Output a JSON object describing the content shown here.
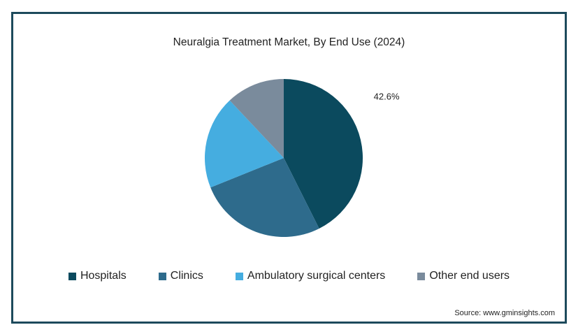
{
  "chart_data": {
    "type": "pie",
    "title": "Neuralgia Treatment Market, By End Use (2024)",
    "categories": [
      "Hospitals",
      "Clinics",
      "Ambulatory surgical centers",
      "Other end users"
    ],
    "values": [
      42.6,
      26.3,
      19.1,
      12.0
    ],
    "data_labels": [
      "42.6%",
      "",
      "",
      ""
    ],
    "colors": [
      "#0b4a5e",
      "#2e6b8c",
      "#45ade0",
      "#7a8b9c"
    ],
    "legend": "bottom",
    "source": "Source: www.gminsights.com"
  }
}
